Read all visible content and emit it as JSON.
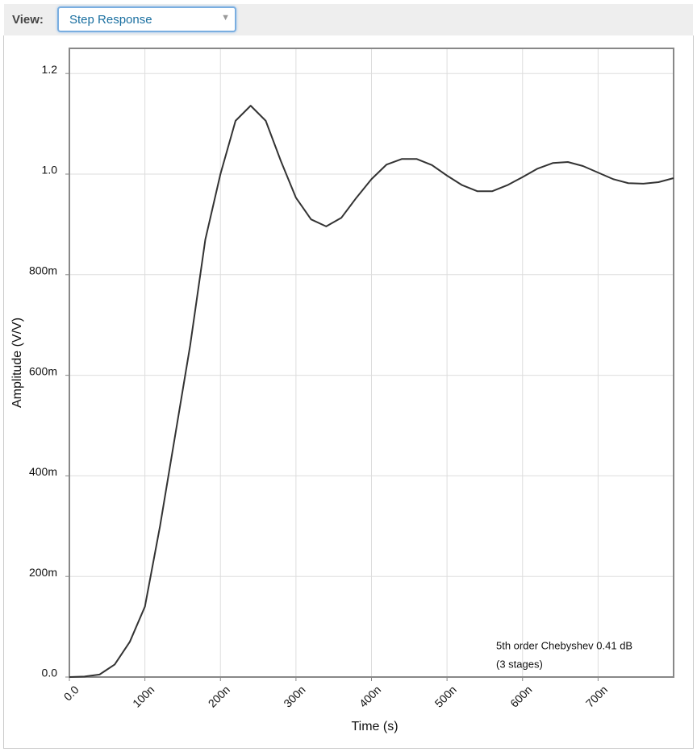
{
  "toolbar": {
    "label": "View:",
    "selected": "Step Response"
  },
  "chart_data": {
    "type": "line",
    "xlabel": "Time (s)",
    "ylabel": "Amplitude (V/V)",
    "annotations": [
      "5th order Chebyshev 0.41 dB",
      "(3 stages)"
    ],
    "xlim": [
      0,
      8e-07
    ],
    "ylim": [
      0,
      1.25
    ],
    "xticks": [
      {
        "value": 0,
        "label": "0.0"
      },
      {
        "value": 1e-07,
        "label": "100n"
      },
      {
        "value": 2e-07,
        "label": "200n"
      },
      {
        "value": 3e-07,
        "label": "300n"
      },
      {
        "value": 4e-07,
        "label": "400n"
      },
      {
        "value": 5e-07,
        "label": "500n"
      },
      {
        "value": 6e-07,
        "label": "600n"
      },
      {
        "value": 7e-07,
        "label": "700n"
      }
    ],
    "yticks": [
      {
        "value": 0,
        "label": "0.0"
      },
      {
        "value": 0.2,
        "label": "200m"
      },
      {
        "value": 0.4,
        "label": "400m"
      },
      {
        "value": 0.6,
        "label": "600m"
      },
      {
        "value": 0.8,
        "label": "800m"
      },
      {
        "value": 1.0,
        "label": "1.0"
      },
      {
        "value": 1.2,
        "label": "1.2"
      }
    ],
    "grid": true,
    "series": [
      {
        "color": "#333333",
        "x": [
          0,
          2e-08,
          4e-08,
          6e-08,
          8e-08,
          1e-07,
          1.2e-07,
          1.4e-07,
          1.6e-07,
          1.8e-07,
          2e-07,
          2.2e-07,
          2.4e-07,
          2.6e-07,
          2.8e-07,
          3e-07,
          3.2e-07,
          3.4e-07,
          3.6e-07,
          3.8e-07,
          4e-07,
          4.2e-07,
          4.4e-07,
          4.6e-07,
          4.8e-07,
          5e-07,
          5.2e-07,
          5.4e-07,
          5.6e-07,
          5.8e-07,
          6e-07,
          6.2e-07,
          6.4e-07,
          6.6e-07,
          6.8e-07,
          7e-07,
          7.2e-07,
          7.4e-07,
          7.6e-07,
          7.8e-07,
          8e-07
        ],
        "values": [
          0,
          0.001,
          0.005,
          0.025,
          0.07,
          0.14,
          0.3,
          0.48,
          0.66,
          0.87,
          1.0,
          1.106,
          1.136,
          1.106,
          1.026,
          0.953,
          0.91,
          0.896,
          0.913,
          0.953,
          0.99,
          1.019,
          1.03,
          1.03,
          1.018,
          0.997,
          0.978,
          0.966,
          0.966,
          0.978,
          0.994,
          1.011,
          1.022,
          1.024,
          1.016,
          1.003,
          0.99,
          0.982,
          0.981,
          0.984,
          0.992
        ]
      }
    ]
  }
}
